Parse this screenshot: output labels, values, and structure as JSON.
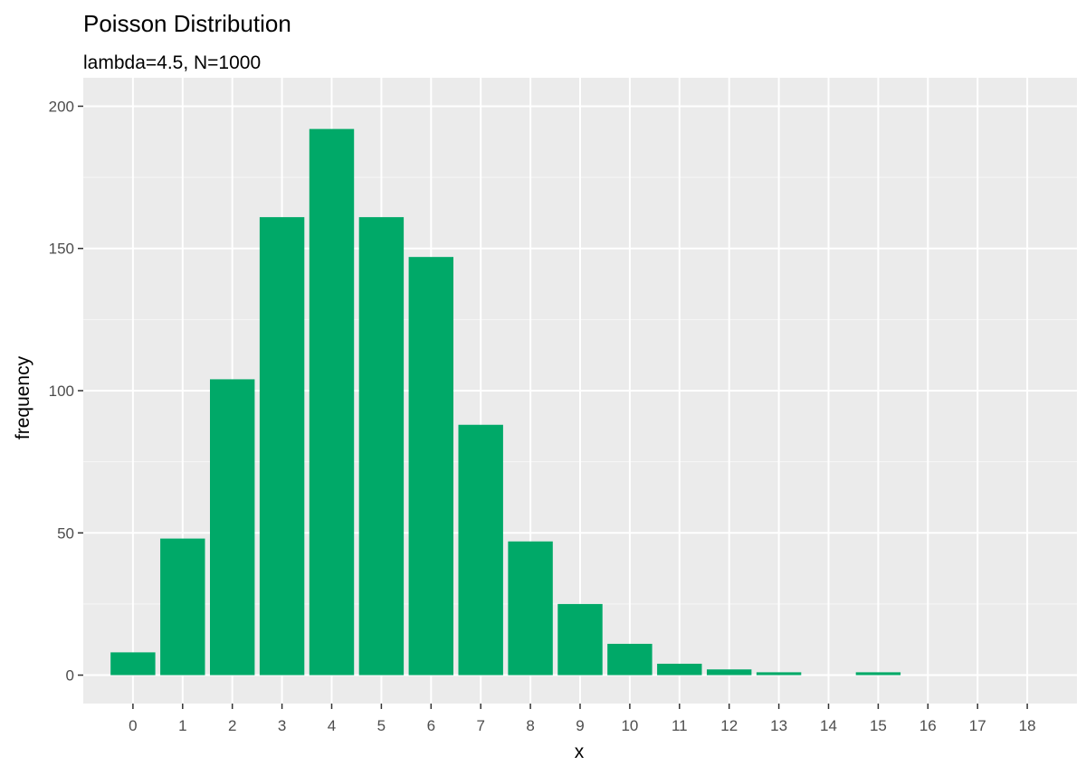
{
  "chart_data": {
    "type": "bar",
    "title": "Poisson Distribution",
    "subtitle": "lambda=4.5, N=1000",
    "xlabel": "x",
    "ylabel": "frequency",
    "categories": [
      0,
      1,
      2,
      3,
      4,
      5,
      6,
      7,
      8,
      9,
      10,
      11,
      12,
      13,
      14,
      15,
      16,
      17,
      18
    ],
    "values": [
      8,
      48,
      104,
      161,
      192,
      161,
      147,
      88,
      47,
      25,
      11,
      4,
      2,
      1,
      0,
      1,
      0,
      0,
      0
    ],
    "xlim": [
      -1,
      19
    ],
    "ylim": [
      0,
      200
    ],
    "yticks": [
      0,
      50,
      100,
      150,
      200
    ],
    "grid": true,
    "legend": "none",
    "colors": {
      "bar": "#00A968",
      "panel": "#EBEBEB",
      "grid_major": "#FFFFFF",
      "tick_text": "#4D4D4D"
    }
  }
}
